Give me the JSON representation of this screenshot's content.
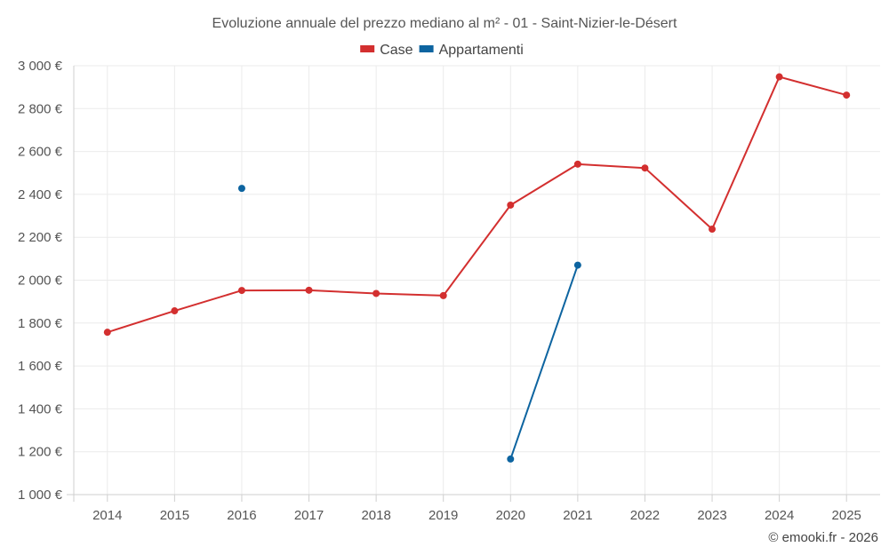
{
  "chart_data": {
    "type": "line",
    "title": "Evoluzione annuale del prezzo mediano al m² - 01 - Saint-Nizier-le-Désert",
    "categories": [
      "2014",
      "2015",
      "2016",
      "2017",
      "2018",
      "2019",
      "2020",
      "2021",
      "2022",
      "2023",
      "2024",
      "2025"
    ],
    "y_ticks": [
      "1 000 €",
      "1 200 €",
      "1 400 €",
      "1 600 €",
      "1 800 €",
      "2 000 €",
      "2 200 €",
      "2 400 €",
      "2 600 €",
      "2 800 €",
      "3 000 €"
    ],
    "ylim": [
      1000,
      3000
    ],
    "y_step": 200,
    "grid": true,
    "legend_position": "top-center",
    "series": [
      {
        "name": "Case",
        "color": "#d32f2f",
        "values": [
          1757,
          1857,
          1952,
          1953,
          1938,
          1928,
          2350,
          2541,
          2523,
          2238,
          2948,
          2863
        ]
      },
      {
        "name": "Appartamenti",
        "color": "#0d64a0",
        "values": [
          null,
          null,
          2428,
          null,
          null,
          null,
          1166,
          2070,
          null,
          null,
          null,
          null
        ]
      }
    ],
    "credit": "© emooki.fr - 2026"
  }
}
